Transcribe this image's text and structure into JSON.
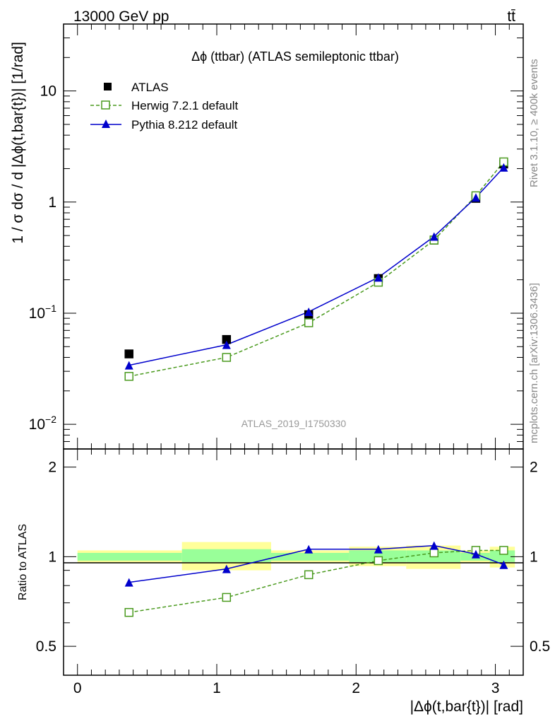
{
  "header": {
    "left": "13000 GeV pp",
    "right": "tt̄"
  },
  "side_text": {
    "right_top": "Rivet 3.1.10, ≥ 400k events",
    "right_bottom": "mcplots.cern.ch [arXiv:1306.3436]"
  },
  "watermark": "ATLAS_2019_I1750330",
  "colors": {
    "data": "#000000",
    "herwig": "#4a9a1e",
    "pythia": "#0000cc",
    "band_yellow": "#ffff99",
    "band_green": "#99ff99"
  },
  "chart_data": [
    {
      "panel": "main",
      "type": "scatter",
      "title": "Δϕ (ttbar) (ATLAS semileptonic ttbar)",
      "ylabel": "1 / σ dσ / d |Δϕ(t,bar{t})| [1/rad]",
      "yscale": "log",
      "ylim": [
        0.006,
        40
      ],
      "xlim": [
        -0.1,
        3.2
      ],
      "yticks": [
        {
          "value": 0.01,
          "label_base": "10",
          "label_exp": "−2"
        },
        {
          "value": 0.1,
          "label_base": "10",
          "label_exp": "−1"
        },
        {
          "value": 1,
          "label_base": "1",
          "label_exp": ""
        },
        {
          "value": 10,
          "label_base": "10",
          "label_exp": ""
        }
      ],
      "x": [
        0.37,
        1.07,
        1.66,
        2.16,
        2.56,
        2.86,
        3.06
      ],
      "series": [
        {
          "name": "ATLAS",
          "style": "data",
          "values": [
            0.043,
            0.058,
            0.097,
            0.205,
            0.455,
            1.08,
            2.2
          ]
        },
        {
          "name": "Herwig 7.2.1 default",
          "style": "herwig",
          "values": [
            0.027,
            0.04,
            0.082,
            0.19,
            0.455,
            1.14,
            2.3
          ]
        },
        {
          "name": "Pythia 8.212 default",
          "style": "pythia",
          "values": [
            0.034,
            0.052,
            0.103,
            0.21,
            0.49,
            1.1,
            2.05
          ]
        }
      ],
      "legend_position": "top-left"
    },
    {
      "panel": "ratio",
      "type": "line",
      "ylabel": "Ratio to ATLAS",
      "xlabel": "|Δϕ(t,bar{t})| [rad]",
      "ylim": [
        0.4,
        2.3
      ],
      "xlim": [
        -0.1,
        3.2
      ],
      "yticks": [
        0.5,
        1,
        2
      ],
      "ytick_labels": [
        "0.5",
        "1",
        "2"
      ],
      "xticks": [
        0,
        1,
        2,
        3
      ],
      "xtick_labels": [
        "0",
        "1",
        "2",
        "3"
      ],
      "x": [
        0.37,
        1.07,
        1.66,
        2.16,
        2.56,
        2.86,
        3.06
      ],
      "series": [
        {
          "name": "Herwig 7.2.1 default",
          "style": "herwig",
          "values": [
            0.65,
            0.73,
            0.87,
            0.97,
            1.03,
            1.05,
            1.05
          ]
        },
        {
          "name": "Pythia 8.212 default",
          "style": "pythia",
          "values": [
            0.82,
            0.91,
            1.06,
            1.06,
            1.09,
            1.02,
            0.94
          ]
        }
      ],
      "uncertainty_bands": [
        {
          "x_lo": 0.0,
          "x_hi": 0.75,
          "green": [
            0.97,
            1.03
          ],
          "yellow": [
            0.95,
            1.05
          ]
        },
        {
          "x_lo": 0.75,
          "x_hi": 1.39,
          "green": [
            0.96,
            1.06
          ],
          "yellow": [
            0.9,
            1.12
          ]
        },
        {
          "x_lo": 1.39,
          "x_hi": 1.95,
          "green": [
            0.97,
            1.03
          ],
          "yellow": [
            0.95,
            1.05
          ]
        },
        {
          "x_lo": 1.95,
          "x_hi": 2.36,
          "green": [
            0.96,
            1.05
          ],
          "yellow": [
            0.93,
            1.08
          ]
        },
        {
          "x_lo": 2.36,
          "x_hi": 2.75,
          "green": [
            0.96,
            1.05
          ],
          "yellow": [
            0.91,
            1.09
          ]
        },
        {
          "x_lo": 2.75,
          "x_hi": 2.96,
          "green": [
            0.97,
            1.03
          ],
          "yellow": [
            0.95,
            1.05
          ]
        },
        {
          "x_lo": 2.96,
          "x_hi": 3.14,
          "green": [
            0.96,
            1.05
          ],
          "yellow": [
            0.92,
            1.08
          ]
        }
      ]
    }
  ]
}
